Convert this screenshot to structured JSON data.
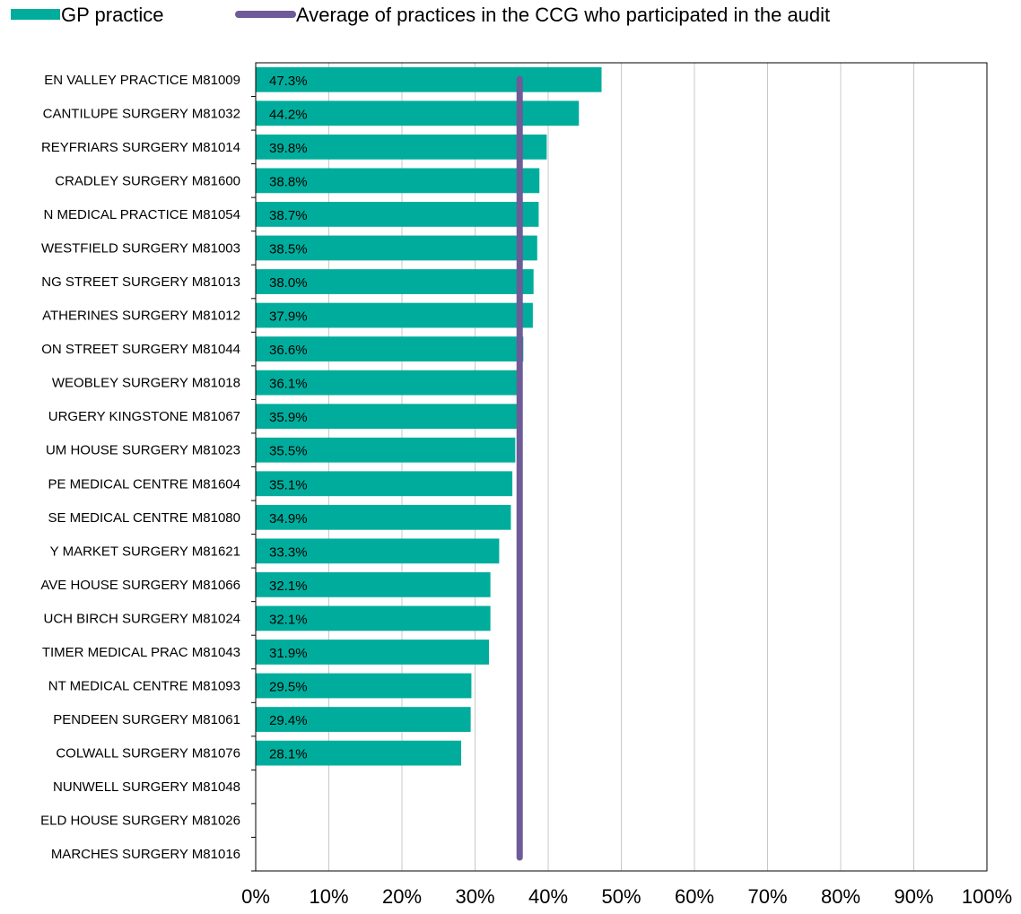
{
  "chart_data": {
    "type": "bar",
    "orientation": "horizontal",
    "legend_position": "top",
    "grid": "vertical",
    "xlim": [
      0,
      100
    ],
    "x_ticks": [
      "0%",
      "10%",
      "20%",
      "30%",
      "40%",
      "50%",
      "60%",
      "70%",
      "80%",
      "90%",
      "100%"
    ],
    "categories": [
      "EN VALLEY PRACTICE M81009",
      "CANTILUPE SURGERY M81032",
      "REYFRIARS SURGERY M81014",
      "CRADLEY SURGERY M81600",
      "N MEDICAL PRACTICE M81054",
      "WESTFIELD SURGERY M81003",
      "NG STREET SURGERY M81013",
      "ATHERINES SURGERY M81012",
      "ON STREET SURGERY M81044",
      "WEOBLEY SURGERY M81018",
      "URGERY KINGSTONE M81067",
      "UM HOUSE SURGERY M81023",
      "PE MEDICAL CENTRE M81604",
      "SE MEDICAL CENTRE M81080",
      "Y MARKET SURGERY M81621",
      "AVE HOUSE SURGERY M81066",
      "UCH BIRCH SURGERY M81024",
      "TIMER MEDICAL PRAC M81043",
      "NT MEDICAL CENTRE M81093",
      "PENDEEN SURGERY M81061",
      "COLWALL SURGERY M81076",
      "NUNWELL SURGERY M81048",
      "ELD HOUSE SURGERY M81026",
      "MARCHES SURGERY M81016"
    ],
    "series": [
      {
        "name": "GP practice",
        "color": "#00ad9c",
        "values": [
          47.3,
          44.2,
          39.8,
          38.8,
          38.7,
          38.5,
          38.0,
          37.9,
          36.6,
          36.1,
          35.9,
          35.5,
          35.1,
          34.9,
          33.3,
          32.1,
          32.1,
          31.9,
          29.5,
          29.4,
          28.1,
          null,
          null,
          null
        ],
        "labels": [
          "47.3%",
          "44.2%",
          "39.8%",
          "38.8%",
          "38.7%",
          "38.5%",
          "38.0%",
          "37.9%",
          "36.6%",
          "36.1%",
          "35.9%",
          "35.5%",
          "35.1%",
          "34.9%",
          "33.3%",
          "32.1%",
          "32.1%",
          "31.9%",
          "29.5%",
          "29.4%",
          "28.1%",
          "",
          "",
          ""
        ]
      },
      {
        "name": "Average of practices in the CCG who participated in the audit",
        "color": "#6e5b98",
        "value": 36.1
      }
    ]
  }
}
